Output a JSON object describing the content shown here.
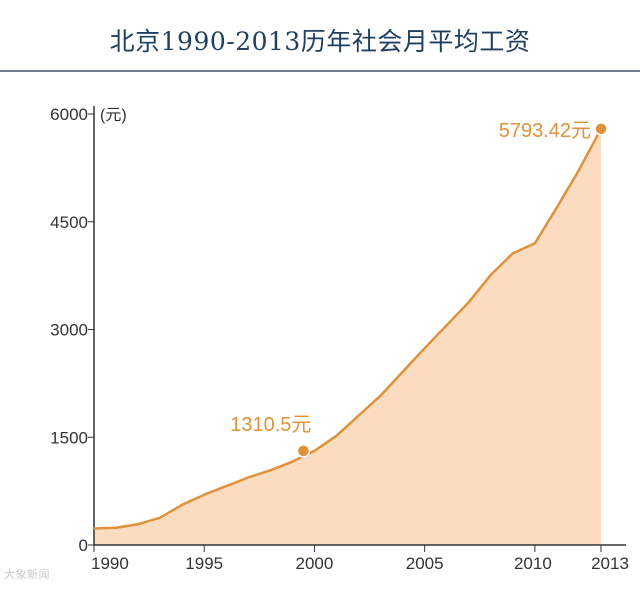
{
  "title": "北京1990-2013历年社会月平均工资",
  "unit_label": "(元)",
  "watermark": "大象新闻",
  "colors": {
    "line": "#e0913a",
    "fill": "#fbdcc0",
    "axis": "#333333",
    "title": "#1f4060",
    "annotation": "#e0913a"
  },
  "chart_data": {
    "type": "area",
    "title": "北京1990-2013历年社会月平均工资",
    "ylabel": "(元)",
    "xlabel": "",
    "ylim": [
      0,
      6000
    ],
    "xlim": [
      1990,
      2013
    ],
    "grid": false,
    "y_ticks": [
      0,
      1500,
      3000,
      4500,
      6000
    ],
    "x_ticks": [
      1990,
      1995,
      2000,
      2005,
      2010,
      2013
    ],
    "x": [
      1990,
      1991,
      1992,
      1993,
      1994,
      1995,
      1996,
      1997,
      1998,
      1999,
      2000,
      2001,
      2002,
      2003,
      2004,
      2005,
      2006,
      2007,
      2008,
      2009,
      2010,
      2011,
      2012,
      2013
    ],
    "values": [
      230,
      240,
      290,
      380,
      560,
      700,
      820,
      940,
      1040,
      1160,
      1310.5,
      1520,
      1800,
      2080,
      2410,
      2740,
      3060,
      3380,
      3760,
      4060,
      4200,
      4700,
      5220,
      5793.42
    ],
    "annotations": [
      {
        "x": 1999.5,
        "y": 1310.5,
        "label": "1310.5元"
      },
      {
        "x": 2013,
        "y": 5793.42,
        "label": "5793.42元"
      }
    ]
  }
}
